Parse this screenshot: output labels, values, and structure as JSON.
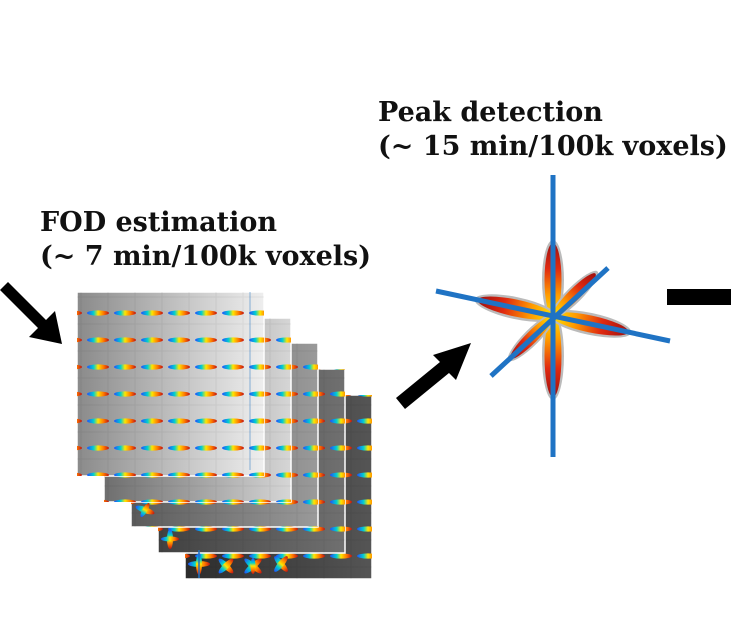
{
  "labels": {
    "fod_title": "FOD estimation",
    "fod_time": "(~ 7 min/100k voxels)",
    "peak_title": "Peak detection",
    "peak_time": "(~ 15 min/100k voxels)"
  },
  "colors": {
    "arrow": "#000000",
    "peak_line": "#1f73c4",
    "lobe_outer": "#b01818",
    "lobe_mid": "#ff8800",
    "lobe_inner": "#ffe600",
    "lobe_halo": "#bbbbbb"
  },
  "icons": [
    "input-arrow-icon",
    "fod-slice-stack-icon",
    "process-arrow-icon",
    "fod-glyph-peaks-icon",
    "output-arrow-icon"
  ]
}
